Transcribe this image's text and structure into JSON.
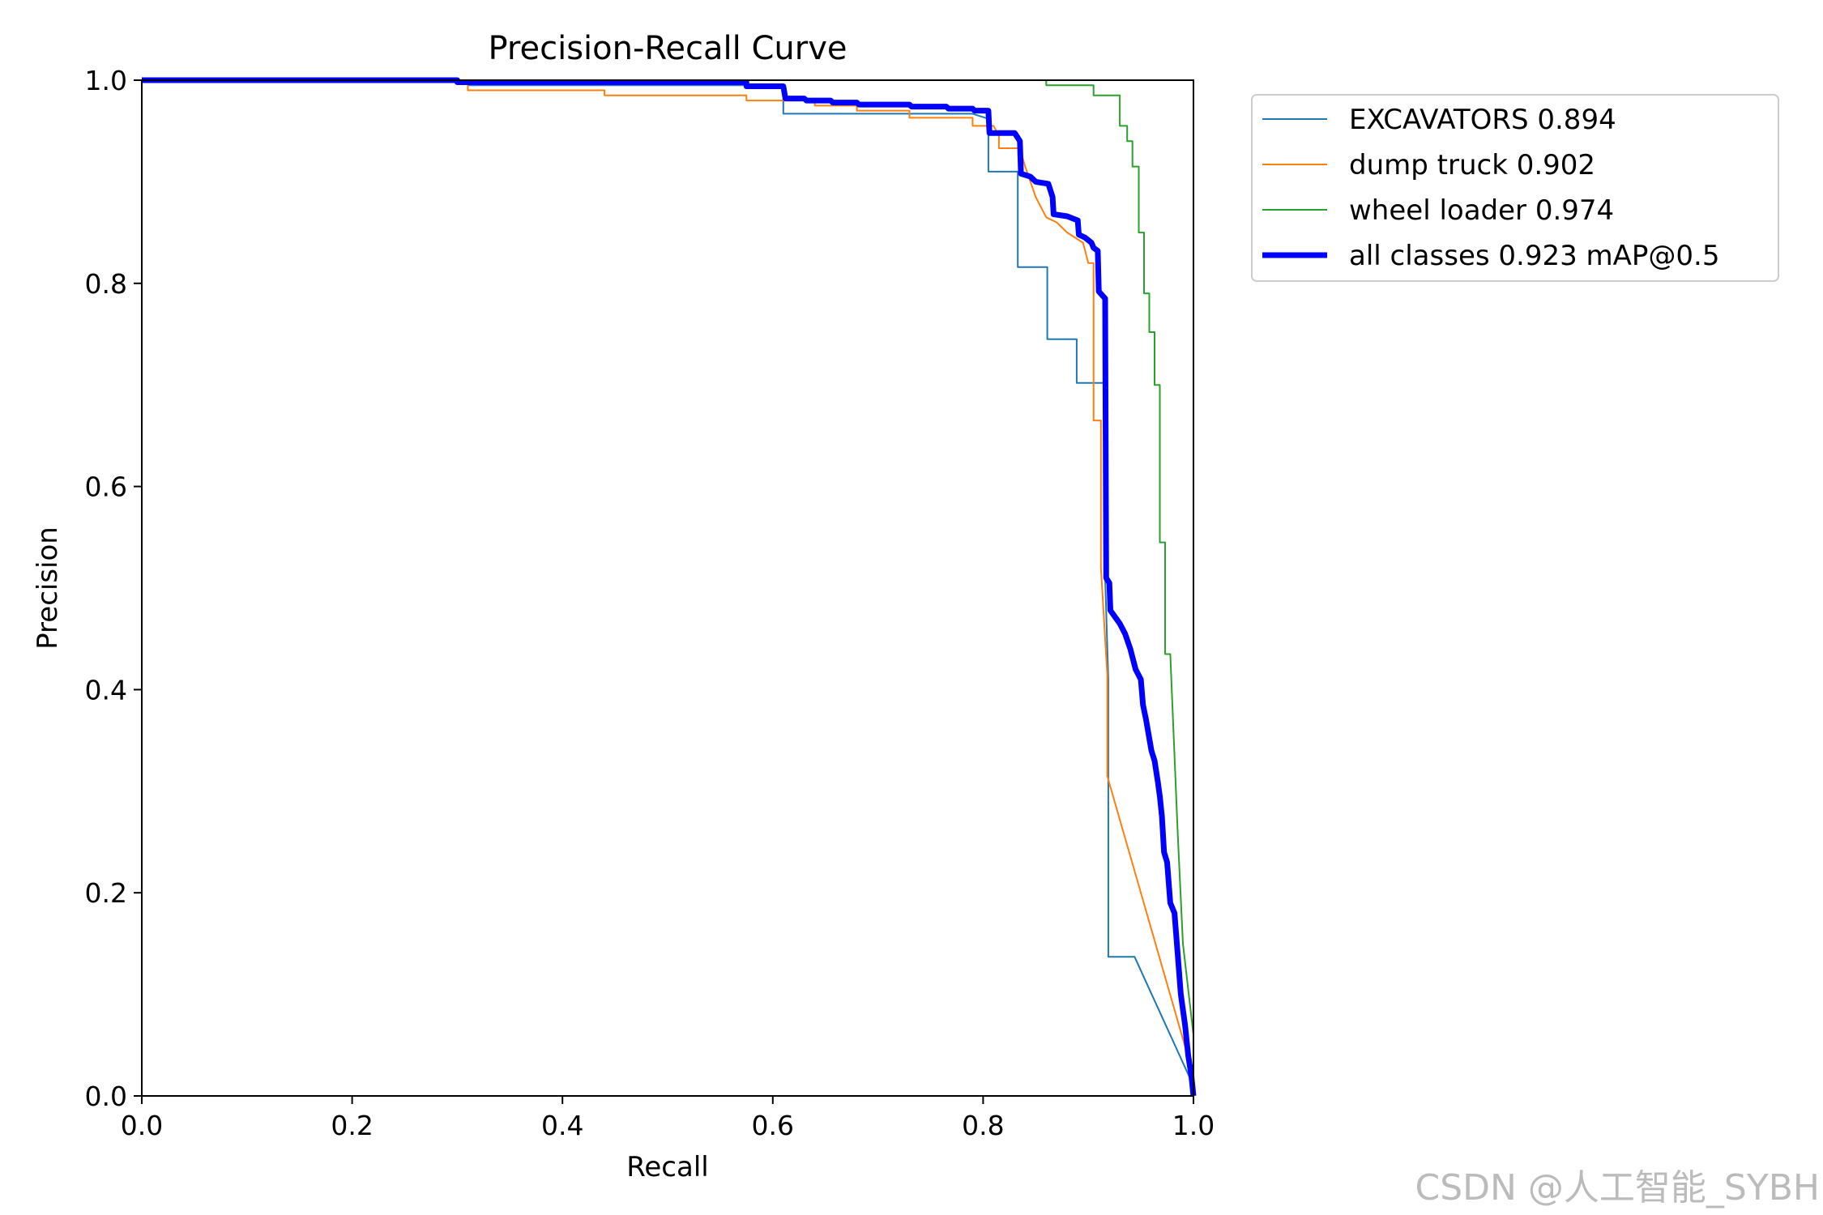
{
  "chart_data": {
    "type": "line",
    "title": "Precision-Recall Curve",
    "xlabel": "Recall",
    "ylabel": "Precision",
    "xlim": [
      0,
      1
    ],
    "ylim": [
      0,
      1
    ],
    "xticks": [
      "0.0",
      "0.2",
      "0.4",
      "0.6",
      "0.8",
      "1.0"
    ],
    "yticks": [
      "0.0",
      "0.2",
      "0.4",
      "0.6",
      "0.8",
      "1.0"
    ],
    "grid": false,
    "legend_position": "outside-top-right",
    "series": [
      {
        "name": "EXCAVATORS 0.894",
        "color": "#1f77b4",
        "line_width": "thin",
        "points": [
          [
            0,
            1
          ],
          [
            0.31,
            1
          ],
          [
            0.31,
            0.995
          ],
          [
            0.61,
            0.995
          ],
          [
            0.61,
            0.967
          ],
          [
            0.79,
            0.967
          ],
          [
            0.805,
            0.962
          ],
          [
            0.805,
            0.91
          ],
          [
            0.833,
            0.91
          ],
          [
            0.833,
            0.816
          ],
          [
            0.861,
            0.816
          ],
          [
            0.861,
            0.745
          ],
          [
            0.889,
            0.745
          ],
          [
            0.889,
            0.702
          ],
          [
            0.916,
            0.702
          ],
          [
            0.916,
            0.51
          ],
          [
            0.919,
            0.41
          ],
          [
            0.919,
            0.137
          ],
          [
            0.944,
            0.137
          ],
          [
            1.0,
            0.01
          ]
        ]
      },
      {
        "name": "dump truck 0.902",
        "color": "#ff7f0e",
        "line_width": "thin",
        "points": [
          [
            0,
            1
          ],
          [
            0.31,
            1
          ],
          [
            0.31,
            0.99
          ],
          [
            0.44,
            0.99
          ],
          [
            0.44,
            0.985
          ],
          [
            0.575,
            0.985
          ],
          [
            0.575,
            0.98
          ],
          [
            0.64,
            0.98
          ],
          [
            0.64,
            0.975
          ],
          [
            0.68,
            0.975
          ],
          [
            0.68,
            0.97
          ],
          [
            0.73,
            0.97
          ],
          [
            0.73,
            0.963
          ],
          [
            0.79,
            0.963
          ],
          [
            0.79,
            0.955
          ],
          [
            0.81,
            0.955
          ],
          [
            0.815,
            0.945
          ],
          [
            0.815,
            0.933
          ],
          [
            0.835,
            0.933
          ],
          [
            0.84,
            0.915
          ],
          [
            0.85,
            0.885
          ],
          [
            0.86,
            0.865
          ],
          [
            0.87,
            0.86
          ],
          [
            0.88,
            0.85
          ],
          [
            0.895,
            0.84
          ],
          [
            0.9,
            0.82
          ],
          [
            0.905,
            0.82
          ],
          [
            0.905,
            0.665
          ],
          [
            0.912,
            0.665
          ],
          [
            0.912,
            0.52
          ],
          [
            0.918,
            0.415
          ],
          [
            0.918,
            0.315
          ],
          [
            1.0,
            0.02
          ]
        ]
      },
      {
        "name": "wheel loader 0.974",
        "color": "#2ca02c",
        "line_width": "thin",
        "points": [
          [
            0,
            1
          ],
          [
            0.86,
            1
          ],
          [
            0.86,
            0.995
          ],
          [
            0.905,
            0.995
          ],
          [
            0.905,
            0.985
          ],
          [
            0.93,
            0.985
          ],
          [
            0.93,
            0.955
          ],
          [
            0.937,
            0.955
          ],
          [
            0.937,
            0.94
          ],
          [
            0.942,
            0.94
          ],
          [
            0.942,
            0.915
          ],
          [
            0.948,
            0.915
          ],
          [
            0.948,
            0.85
          ],
          [
            0.953,
            0.85
          ],
          [
            0.953,
            0.79
          ],
          [
            0.958,
            0.79
          ],
          [
            0.958,
            0.752
          ],
          [
            0.963,
            0.752
          ],
          [
            0.963,
            0.7
          ],
          [
            0.968,
            0.7
          ],
          [
            0.968,
            0.545
          ],
          [
            0.973,
            0.545
          ],
          [
            0.973,
            0.435
          ],
          [
            0.978,
            0.435
          ],
          [
            0.985,
            0.26
          ],
          [
            0.99,
            0.15
          ],
          [
            1.0,
            0.06
          ],
          [
            1.0,
            0.0
          ]
        ]
      },
      {
        "name": "all classes 0.923 mAP@0.5",
        "color": "#0000ff",
        "line_width": "thick",
        "points": [
          [
            0,
            1
          ],
          [
            0.3,
            1
          ],
          [
            0.3,
            0.998
          ],
          [
            0.575,
            0.998
          ],
          [
            0.575,
            0.994
          ],
          [
            0.61,
            0.994
          ],
          [
            0.612,
            0.982
          ],
          [
            0.63,
            0.982
          ],
          [
            0.632,
            0.98
          ],
          [
            0.655,
            0.98
          ],
          [
            0.657,
            0.978
          ],
          [
            0.68,
            0.978
          ],
          [
            0.682,
            0.976
          ],
          [
            0.73,
            0.976
          ],
          [
            0.732,
            0.974
          ],
          [
            0.765,
            0.974
          ],
          [
            0.767,
            0.972
          ],
          [
            0.79,
            0.972
          ],
          [
            0.792,
            0.97
          ],
          [
            0.805,
            0.97
          ],
          [
            0.806,
            0.948
          ],
          [
            0.83,
            0.948
          ],
          [
            0.835,
            0.94
          ],
          [
            0.836,
            0.908
          ],
          [
            0.845,
            0.905
          ],
          [
            0.85,
            0.9
          ],
          [
            0.862,
            0.898
          ],
          [
            0.866,
            0.885
          ],
          [
            0.867,
            0.868
          ],
          [
            0.88,
            0.866
          ],
          [
            0.89,
            0.862
          ],
          [
            0.891,
            0.848
          ],
          [
            0.897,
            0.845
          ],
          [
            0.903,
            0.84
          ],
          [
            0.905,
            0.835
          ],
          [
            0.909,
            0.832
          ],
          [
            0.91,
            0.792
          ],
          [
            0.916,
            0.785
          ],
          [
            0.917,
            0.51
          ],
          [
            0.92,
            0.505
          ],
          [
            0.921,
            0.478
          ],
          [
            0.93,
            0.465
          ],
          [
            0.935,
            0.455
          ],
          [
            0.94,
            0.44
          ],
          [
            0.945,
            0.42
          ],
          [
            0.95,
            0.41
          ],
          [
            0.952,
            0.385
          ],
          [
            0.955,
            0.37
          ],
          [
            0.958,
            0.352
          ],
          [
            0.96,
            0.34
          ],
          [
            0.963,
            0.33
          ],
          [
            0.966,
            0.31
          ],
          [
            0.968,
            0.295
          ],
          [
            0.97,
            0.275
          ],
          [
            0.972,
            0.24
          ],
          [
            0.975,
            0.23
          ],
          [
            0.978,
            0.19
          ],
          [
            0.982,
            0.18
          ],
          [
            0.985,
            0.14
          ],
          [
            0.988,
            0.1
          ],
          [
            0.992,
            0.07
          ],
          [
            0.995,
            0.04
          ],
          [
            0.998,
            0.02
          ],
          [
            1.0,
            0.0
          ]
        ]
      }
    ]
  },
  "watermark": "CSDN @人工智能_SYBH"
}
